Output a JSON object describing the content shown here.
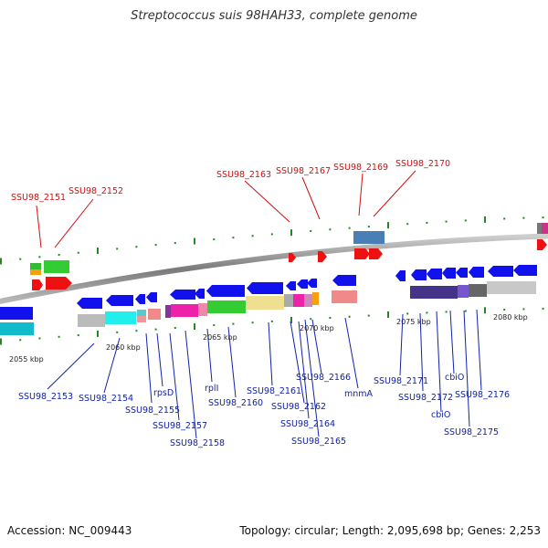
{
  "title": "Streptococcus suis 98HAH33, complete genome",
  "footer": {
    "accession": "Accession: NC_009443",
    "summary": "Topology: circular; Length: 2,095,698 bp; Genes: 2,253"
  },
  "scale_labels": [
    "2055 kbp",
    "2060 kbp",
    "2065 kbp",
    "2070 kbp",
    "2075 kbp",
    "2080 kbp"
  ],
  "upper_labels": [
    "SSU98_2151",
    "SSU98_2152",
    "SSU98_2163",
    "SSU98_2167",
    "SSU98_2169",
    "SSU98_2170"
  ],
  "lower_labels": [
    "SSU98_2153",
    "SSU98_2154",
    "rpsD",
    "SSU98_2155",
    "SSU98_2157",
    "SSU98_2158",
    "rplI",
    "SSU98_2160",
    "SSU98_2161",
    "SSU98_2162",
    "SSU98_2164",
    "SSU98_2165",
    "SSU98_2166",
    "mnmA",
    "SSU98_2171",
    "SSU98_2172",
    "cbiO",
    "cbiO",
    "SSU98_2175",
    "SSU98_2176"
  ],
  "colors": {
    "upper_label": "#cc1111",
    "lower_label": "#1122aa",
    "forward_gene": "#ee1111",
    "reverse_gene": "#1111ee",
    "tick": "#228822",
    "backbone": "#888888"
  }
}
